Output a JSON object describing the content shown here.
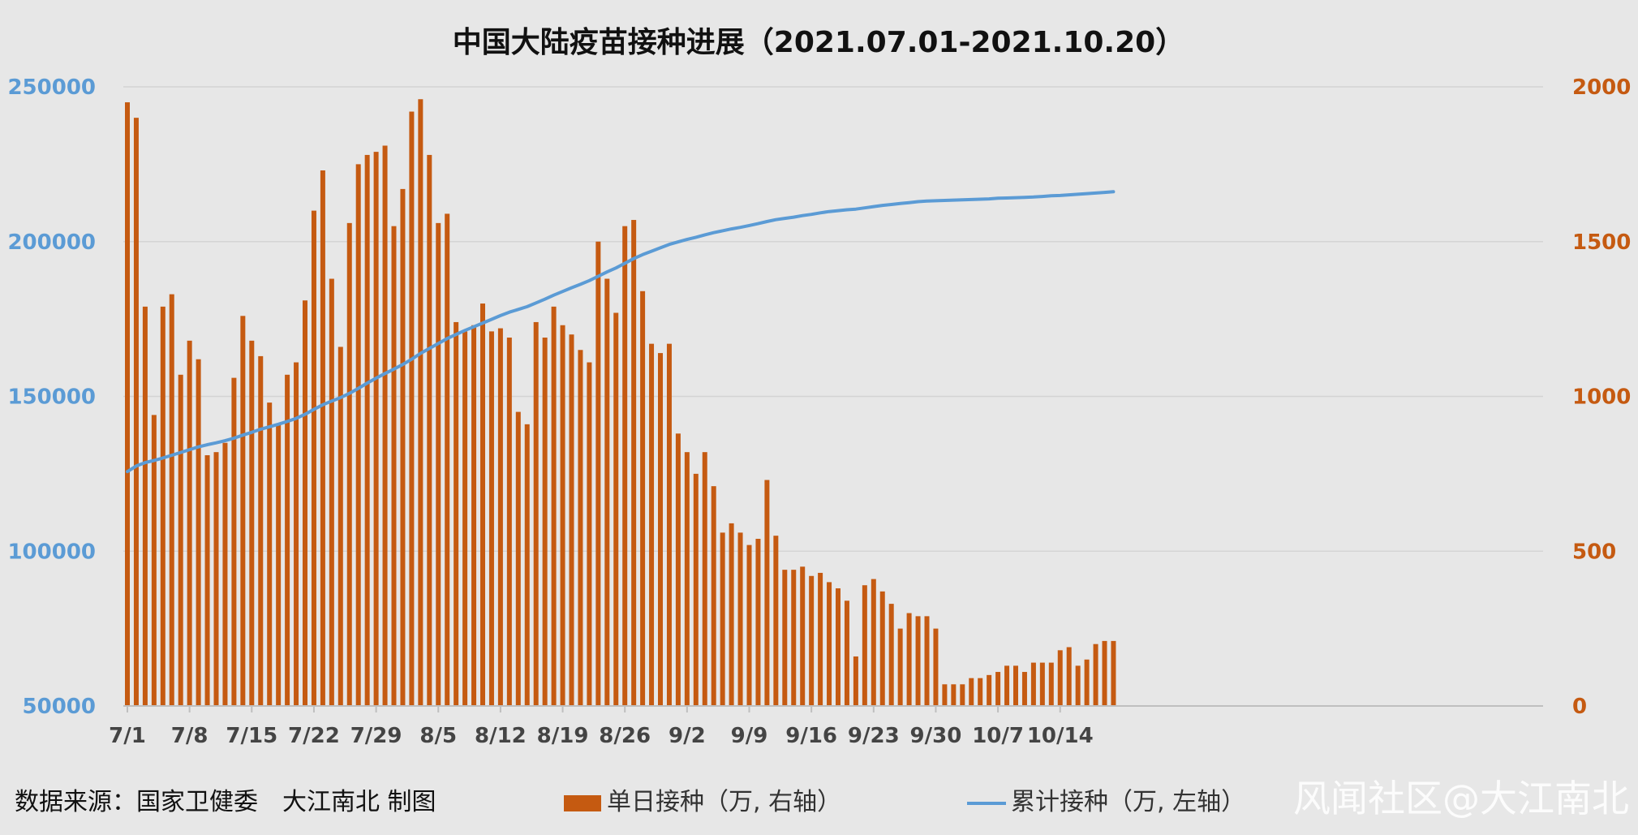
{
  "colors": {
    "background": "#e7e7e7",
    "bar": "#c55a11",
    "line": "#5b9bd5",
    "left_axis_text": "#5b9bd5",
    "right_axis_text": "#c55a11",
    "grid": "#d4d4d4"
  },
  "footer": {
    "source": "数据来源：国家卫健委　大江南北 制图",
    "watermark": "风闻社区@大江南北"
  },
  "chart_data": {
    "type": "bar",
    "title": "中国大陆疫苗接种进展（2021.07.01-2021.10.20）",
    "xlabel": "",
    "ylabel": "",
    "grid": true,
    "legend_position": "bottom",
    "x_ticks": [
      "7/1",
      "7/8",
      "7/15",
      "7/22",
      "7/29",
      "8/5",
      "8/12",
      "8/19",
      "8/26",
      "9/2",
      "9/9",
      "9/16",
      "9/23",
      "9/30",
      "10/7",
      "10/14"
    ],
    "y_left": {
      "range": [
        50000,
        250000
      ],
      "ticks": [
        "50000",
        "100000",
        "150000",
        "200000",
        "250000"
      ]
    },
    "y_right": {
      "range": [
        0,
        2000
      ],
      "ticks": [
        "0",
        "500",
        "1000",
        "1500",
        "2000"
      ]
    },
    "categories": [
      "7/1",
      "7/2",
      "7/3",
      "7/4",
      "7/5",
      "7/6",
      "7/7",
      "7/8",
      "7/9",
      "7/10",
      "7/11",
      "7/12",
      "7/13",
      "7/14",
      "7/15",
      "7/16",
      "7/17",
      "7/18",
      "7/19",
      "7/20",
      "7/21",
      "7/22",
      "7/23",
      "7/24",
      "7/25",
      "7/26",
      "7/27",
      "7/28",
      "7/29",
      "7/30",
      "7/31",
      "8/1",
      "8/2",
      "8/3",
      "8/4",
      "8/5",
      "8/6",
      "8/7",
      "8/8",
      "8/9",
      "8/10",
      "8/11",
      "8/12",
      "8/13",
      "8/14",
      "8/15",
      "8/16",
      "8/17",
      "8/18",
      "8/19",
      "8/20",
      "8/21",
      "8/22",
      "8/23",
      "8/24",
      "8/25",
      "8/26",
      "8/27",
      "8/28",
      "8/29",
      "8/30",
      "8/31",
      "9/1",
      "9/2",
      "9/3",
      "9/4",
      "9/5",
      "9/6",
      "9/7",
      "9/8",
      "9/9",
      "9/10",
      "9/11",
      "9/12",
      "9/13",
      "9/14",
      "9/15",
      "9/16",
      "9/17",
      "9/18",
      "9/19",
      "9/20",
      "9/21",
      "9/22",
      "9/23",
      "9/24",
      "9/25",
      "9/26",
      "9/27",
      "9/28",
      "9/29",
      "9/30",
      "10/1",
      "10/2",
      "10/3",
      "10/4",
      "10/5",
      "10/6",
      "10/7",
      "10/8",
      "10/9",
      "10/10",
      "10/11",
      "10/12",
      "10/13",
      "10/14",
      "10/15",
      "10/16",
      "10/17",
      "10/18",
      "10/19",
      "10/20"
    ],
    "series": [
      {
        "name": "单日接种（万, 右轴）",
        "axis": "right",
        "type": "bar",
        "values": [
          1950,
          1900,
          1290,
          940,
          1290,
          1330,
          1070,
          1180,
          1120,
          810,
          820,
          850,
          1060,
          1260,
          1180,
          1130,
          980,
          910,
          1070,
          1110,
          1310,
          1600,
          1730,
          1380,
          1160,
          1560,
          1750,
          1780,
          1790,
          1810,
          1550,
          1670,
          1920,
          1960,
          1780,
          1560,
          1590,
          1240,
          1210,
          1230,
          1300,
          1210,
          1220,
          1190,
          950,
          910,
          1240,
          1190,
          1290,
          1230,
          1200,
          1150,
          1110,
          1500,
          1380,
          1270,
          1550,
          1570,
          1340,
          1170,
          1140,
          1170,
          880,
          820,
          750,
          820,
          710,
          560,
          590,
          560,
          520,
          540,
          730,
          550,
          440,
          440,
          450,
          420,
          430,
          400,
          380,
          340,
          160,
          390,
          410,
          370,
          330,
          250,
          300,
          290,
          290,
          250,
          70,
          70,
          70,
          90,
          90,
          100,
          110,
          130,
          130,
          110,
          140,
          140,
          140,
          180,
          190,
          130,
          150,
          200,
          210,
          210
        ]
      },
      {
        "name": "累计接种（万, 左轴）",
        "axis": "left",
        "type": "line",
        "values": [
          125700,
          127500,
          128600,
          129300,
          130100,
          131000,
          131900,
          132800,
          133700,
          134400,
          135000,
          135700,
          136500,
          137500,
          138400,
          139400,
          140200,
          141000,
          141900,
          142900,
          144200,
          145800,
          147300,
          148500,
          149600,
          151000,
          152600,
          154300,
          155900,
          157400,
          158800,
          160300,
          162000,
          163900,
          165500,
          167100,
          168700,
          170000,
          171300,
          172500,
          173700,
          174900,
          176100,
          177200,
          178100,
          179000,
          180200,
          181400,
          182700,
          183900,
          185100,
          186200,
          187400,
          188800,
          190200,
          191500,
          193000,
          194500,
          195800,
          196900,
          198000,
          199100,
          199900,
          200700,
          201400,
          202200,
          202900,
          203500,
          204100,
          204600,
          205200,
          205800,
          206500,
          207100,
          207500,
          207900,
          208400,
          208800,
          209300,
          209700,
          210000,
          210300,
          210500,
          210900,
          211300,
          211700,
          212000,
          212300,
          212600,
          212900,
          213100,
          213200,
          213300,
          213400,
          213500,
          213600,
          213700,
          213800,
          214000,
          214100,
          214200,
          214300,
          214400,
          214600,
          214800,
          214900,
          215100,
          215300,
          215500,
          215700,
          215900,
          216100
        ]
      }
    ]
  }
}
